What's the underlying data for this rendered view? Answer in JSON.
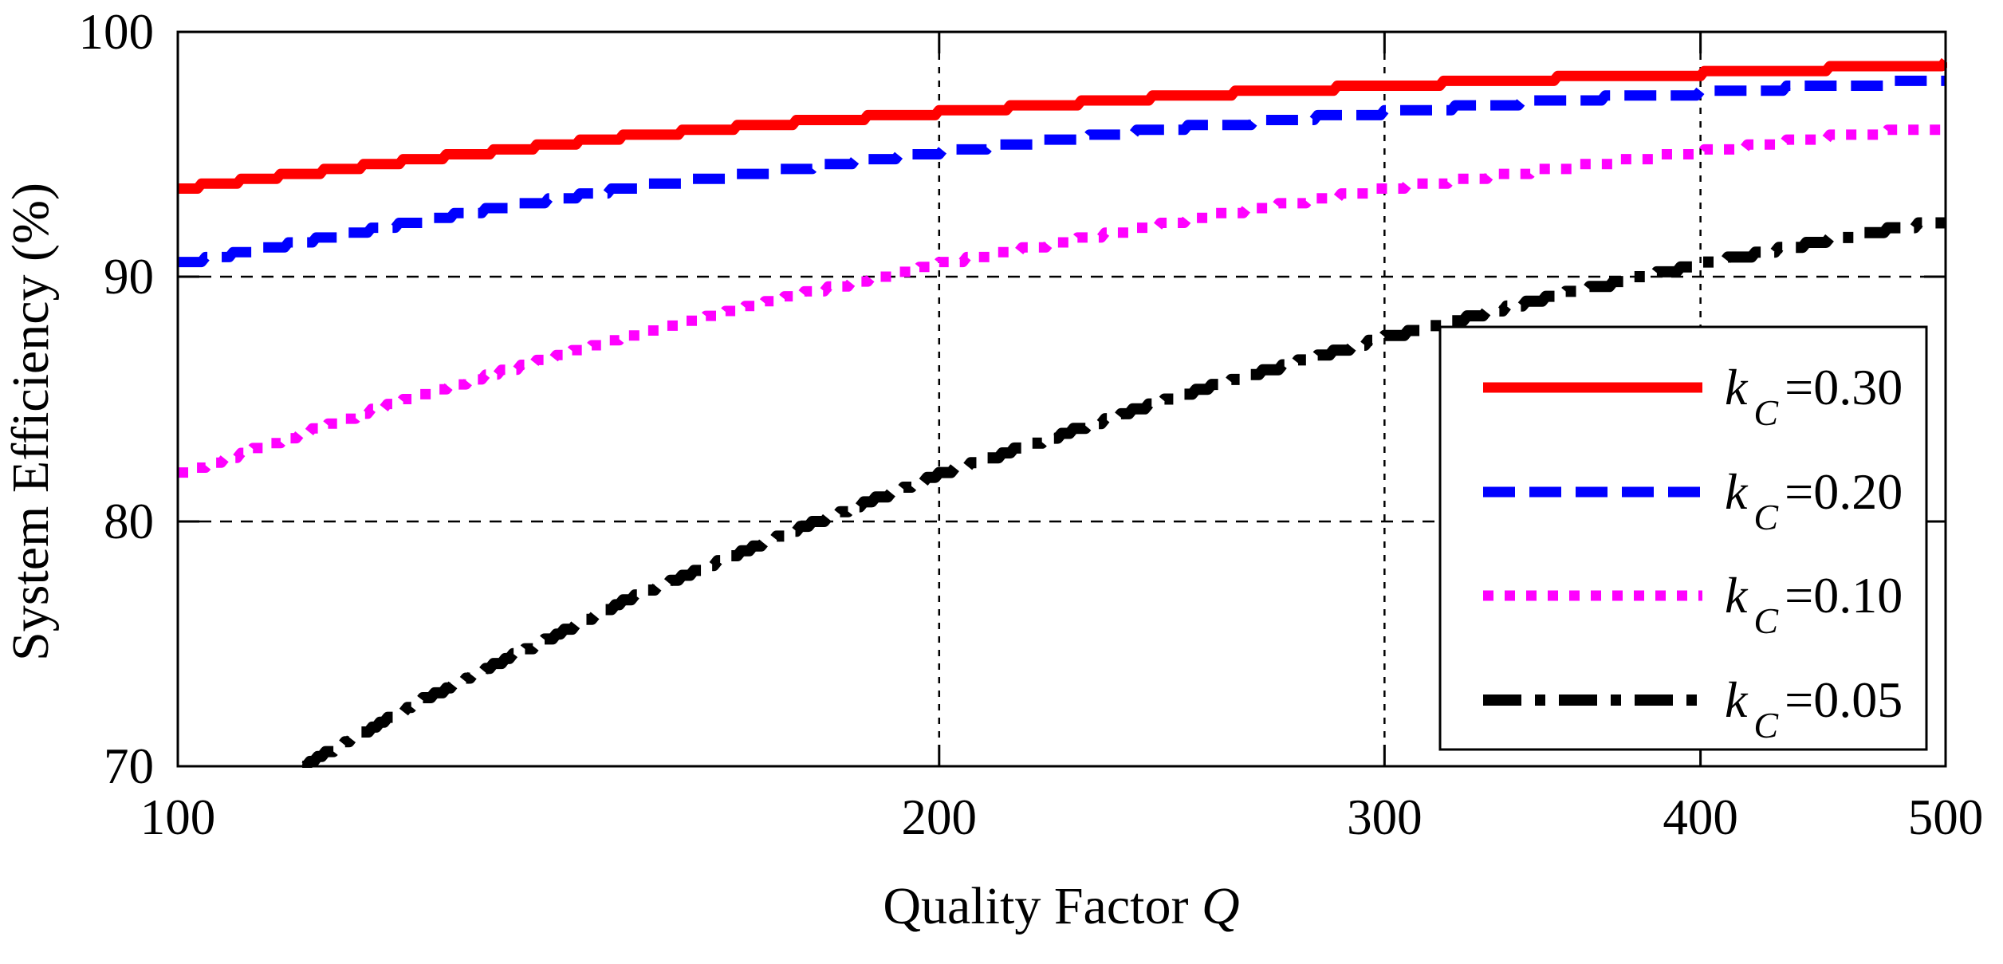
{
  "figure": {
    "background": "#ffffff",
    "axis_color": "#000000",
    "xlabel": {
      "text": "Quality Factor ",
      "italic": "Q",
      "full": "Quality Factor Q"
    },
    "ylabel": "System Efficiency (%)"
  },
  "chart_data": {
    "type": "line",
    "title": "",
    "xlabel": "Quality Factor Q",
    "ylabel": "System Efficiency (%)",
    "x_axis": {
      "scale": "log",
      "min": 100,
      "max": 500,
      "ticks": [
        100,
        200,
        300,
        400,
        500
      ]
    },
    "y_axis": {
      "scale": "linear",
      "min": 70,
      "max": 100,
      "ticks": [
        70,
        80,
        90,
        100
      ],
      "unit": "%"
    },
    "grid": {
      "horizontal_at": [
        80,
        90
      ],
      "vertical_at": [
        200,
        300,
        400
      ],
      "h_style": "dashed",
      "v_style": "dotted"
    },
    "legend_position": "inside-lower-right",
    "quantize_step_percent": 0.2,
    "series": [
      {
        "name": "kC=0.30",
        "legend": {
          "var": "k",
          "sub": "C",
          "rest": "=0.30"
        },
        "color": "#ff0000",
        "style": "solid",
        "x": [
          100,
          125,
          150,
          175,
          200,
          250,
          300,
          350,
          400,
          450,
          500
        ],
        "y": [
          93.6,
          94.8,
          95.7,
          96.3,
          96.7,
          97.4,
          97.8,
          98.1,
          98.3,
          98.5,
          98.7
        ]
      },
      {
        "name": "kC=0.20",
        "legend": {
          "var": "k",
          "sub": "C",
          "rest": "=0.20"
        },
        "color": "#0000ff",
        "style": "dashed",
        "x": [
          100,
          125,
          150,
          175,
          200,
          250,
          300,
          350,
          400,
          450,
          500
        ],
        "y": [
          90.5,
          92.3,
          93.6,
          94.4,
          95.1,
          96.1,
          96.7,
          97.2,
          97.5,
          97.8,
          98.0
        ]
      },
      {
        "name": "kC=0.10",
        "legend": {
          "var": "k",
          "sub": "C",
          "rest": "=0.10"
        },
        "color": "#ff00ff",
        "style": "dotted",
        "x": [
          100,
          125,
          150,
          175,
          200,
          250,
          300,
          350,
          400,
          450,
          500
        ],
        "y": [
          81.9,
          85.2,
          87.5,
          89.2,
          90.5,
          92.3,
          93.6,
          94.4,
          95.1,
          95.7,
          96.1
        ]
      },
      {
        "name": "kC=0.05",
        "legend": {
          "var": "k",
          "sub": "C",
          "rest": "=0.05"
        },
        "color": "#000000",
        "style": "dash-dot",
        "x": [
          112,
          125,
          150,
          175,
          200,
          250,
          300,
          350,
          400,
          450,
          500
        ],
        "y": [
          70.0,
          72.7,
          76.7,
          79.6,
          81.9,
          85.2,
          87.5,
          89.2,
          90.5,
          91.5,
          92.3
        ]
      }
    ]
  }
}
